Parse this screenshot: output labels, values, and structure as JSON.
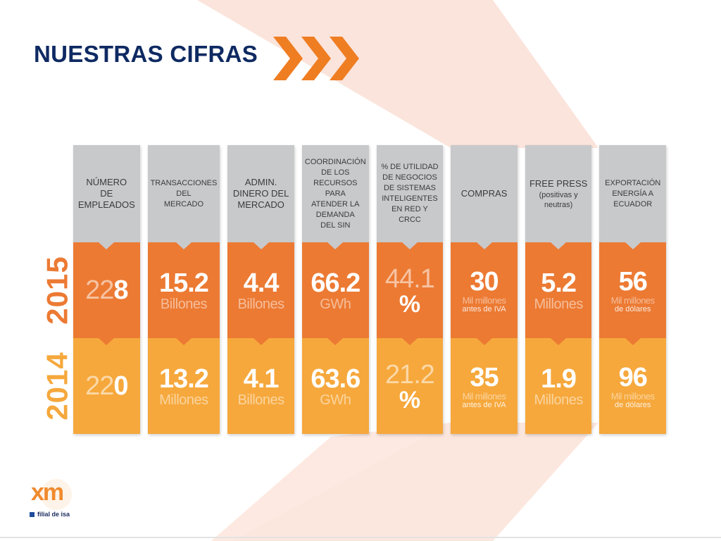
{
  "slide": {
    "title": "NUESTRAS CIFRAS"
  },
  "years": {
    "current": "2015",
    "previous": "2014"
  },
  "columns": [
    {
      "header": "NÚMERO\nDE\nEMPLEADOS",
      "v2015": {
        "main_light": "22",
        "main_bold": "8",
        "unit": ""
      },
      "v2014": {
        "main_light": "22",
        "main_bold": "0",
        "unit": ""
      }
    },
    {
      "header": "TRANSACCIONES\nDEL\nMERCADO",
      "v2015": {
        "value": "15.2",
        "unit": "Billones"
      },
      "v2014": {
        "value": "13.2",
        "unit": "Millones"
      }
    },
    {
      "header": "ADMIN.\nDINERO DEL\nMERCADO",
      "v2015": {
        "value": "4.4",
        "unit": "Billones"
      },
      "v2014": {
        "value": "4.1",
        "unit": "Billones"
      }
    },
    {
      "header": "COORDINACIÓN\nDE LOS\nRECURSOS\nPARA\nATENDER LA\nDEMANDA\nDEL SIN",
      "v2015": {
        "value": "66.2",
        "unit": "GWh"
      },
      "v2014": {
        "value": "63.6",
        "unit": "GWh"
      }
    },
    {
      "header": "% DE UTILIDAD\nDE NEGOCIOS\nDE SISTEMAS\nINTELIGENTES\nEN RED Y\nCRCC",
      "v2015": {
        "value": "44.1",
        "unit": "%"
      },
      "v2014": {
        "value": "21.2",
        "unit": "%"
      }
    },
    {
      "header": "COMPRAS",
      "v2015": {
        "value": "30",
        "unit": "Mil millones",
        "unit2": "antes de IVA"
      },
      "v2014": {
        "value": "35",
        "unit": "Mil millones",
        "unit2": "antes de IVA"
      }
    },
    {
      "header": "FREE PRESS",
      "header_sub": "(positivas y\nneutras)",
      "v2015": {
        "value": "5.2",
        "unit": "Millones"
      },
      "v2014": {
        "value": "1.9",
        "unit": "Millones"
      }
    },
    {
      "header": "EXPORTACIÓN\nENERGÍA A\nECUADOR",
      "v2015": {
        "value": "56",
        "unit": "Mil millones",
        "unit2": "de dólares"
      },
      "v2014": {
        "value": "96",
        "unit": "Mil millones",
        "unit2": "de dólares"
      }
    }
  ],
  "logo": {
    "mark": "xm",
    "tagline": "filial de isa"
  },
  "colors": {
    "title": "#0f2a62",
    "orange_2015": "#ec7a33",
    "yellow_2014": "#f6a83c",
    "header_gray": "#c8c9cb",
    "chevron": "#ef7d22"
  },
  "icons": {
    "chevrons": "triple-chevron-right-icon"
  }
}
